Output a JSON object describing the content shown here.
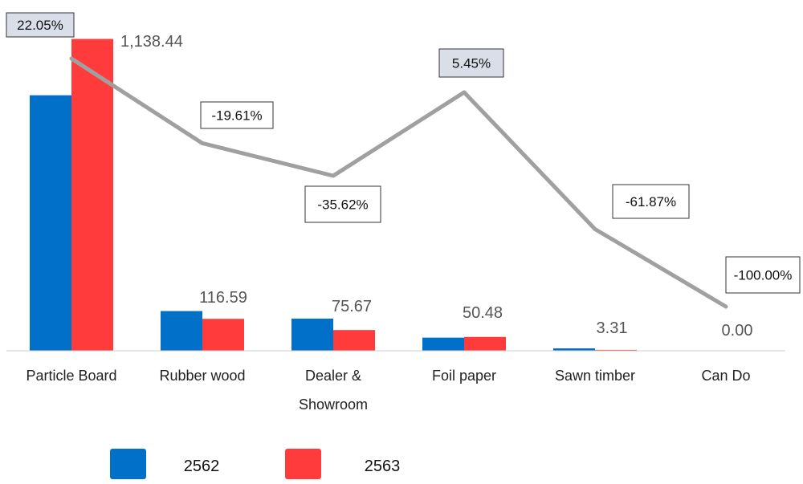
{
  "chart_data": {
    "type": "bar",
    "categories": [
      "Particle Board",
      "Rubber wood",
      "Dealer & Showroom",
      "Foil paper",
      "Sawn timber",
      "Can Do"
    ],
    "series": [
      {
        "name": "2562",
        "color": "#0070C9",
        "values": [
          932.8,
          145.0,
          117.5,
          47.9,
          8.7,
          0.0
        ]
      },
      {
        "name": "2563",
        "color": "#FF3B3B",
        "values": [
          1138.44,
          116.59,
          75.67,
          50.48,
          3.31,
          0.0
        ]
      }
    ],
    "data_labels": [
      "1,138.44",
      "116.59",
      "75.67",
      "50.48",
      "3.31",
      "0.00"
    ],
    "growth_line": {
      "color": "#A0A0A0",
      "values": [
        22.05,
        -19.61,
        -35.62,
        5.45,
        -61.87,
        -100.0
      ],
      "labels": [
        "22.05%",
        "-19.61%",
        "-35.62%",
        "5.45%",
        "-61.87%",
        "-100.00%"
      ]
    },
    "ylim": [
      0,
      1140
    ],
    "growth_ylim": [
      -100,
      22.05
    ],
    "grid": false,
    "legend_position": "bottom"
  }
}
